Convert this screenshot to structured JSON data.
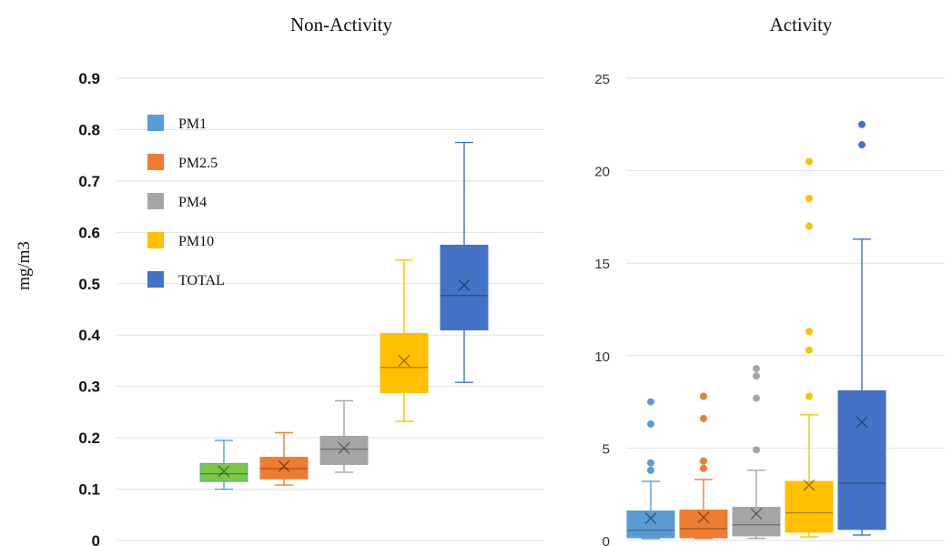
{
  "chart_data": [
    {
      "type": "boxplot",
      "title": "Non-Activity",
      "ylabel": "mg/m3",
      "ylim": [
        0,
        0.9
      ],
      "yticks": [
        "0",
        "0.1",
        "0.2",
        "0.3",
        "0.4",
        "0.5",
        "0.6",
        "0.7",
        "0.8",
        "0.9"
      ],
      "grid": true,
      "legend_position": "top-left",
      "series": [
        {
          "name": "PM1",
          "color": "#7CC744",
          "legend_color": "#5B9BD5",
          "edge": "#5B9BD5",
          "whisker_low": 0.1,
          "q1": 0.115,
          "median": 0.13,
          "mean": 0.135,
          "q3": 0.15,
          "whisker_high": 0.195,
          "outliers": []
        },
        {
          "name": "PM2.5",
          "color": "#ED7D31",
          "legend_color": "#ED7D31",
          "edge": "#ED7D31",
          "whisker_low": 0.108,
          "q1": 0.12,
          "median": 0.14,
          "mean": 0.145,
          "q3": 0.162,
          "whisker_high": 0.21,
          "outliers": []
        },
        {
          "name": "PM4",
          "color": "#A5A5A5",
          "legend_color": "#A5A5A5",
          "edge": "#A5A5A5",
          "whisker_low": 0.133,
          "q1": 0.148,
          "median": 0.178,
          "mean": 0.18,
          "q3": 0.203,
          "whisker_high": 0.272,
          "outliers": []
        },
        {
          "name": "PM10",
          "color": "#FFC000",
          "legend_color": "#FFC000",
          "edge": "#FFC000",
          "whisker_low": 0.232,
          "q1": 0.288,
          "median": 0.337,
          "mean": 0.35,
          "q3": 0.403,
          "whisker_high": 0.546,
          "outliers": []
        },
        {
          "name": "TOTAL",
          "color": "#4472C4",
          "legend_color": "#4472C4",
          "edge": "#4472C4",
          "whisker_low": 0.308,
          "q1": 0.41,
          "median": 0.477,
          "mean": 0.497,
          "q3": 0.575,
          "whisker_high": 0.775,
          "outliers": []
        }
      ]
    },
    {
      "type": "boxplot",
      "title": "Activity",
      "ylim": [
        0,
        25
      ],
      "yticks": [
        "0",
        "5",
        "10",
        "15",
        "20",
        "25"
      ],
      "grid": true,
      "series": [
        {
          "name": "PM1",
          "color": "#5B9BD5",
          "edge": "#5B9BD5",
          "whisker_low": 0.1,
          "q1": 0.15,
          "median": 0.55,
          "mean": 1.2,
          "q3": 1.6,
          "whisker_high": 3.2,
          "outliers": [
            3.8,
            4.2,
            6.3,
            7.5
          ]
        },
        {
          "name": "PM2.5",
          "color": "#ED7D31",
          "edge": "#ED7D31",
          "whisker_low": 0.1,
          "q1": 0.15,
          "median": 0.65,
          "mean": 1.25,
          "q3": 1.65,
          "whisker_high": 3.3,
          "outliers": [
            3.9,
            4.3,
            6.6,
            7.8
          ]
        },
        {
          "name": "PM4",
          "color": "#A5A5A5",
          "edge": "#A5A5A5",
          "whisker_low": 0.12,
          "q1": 0.25,
          "median": 0.85,
          "mean": 1.45,
          "q3": 1.8,
          "whisker_high": 3.8,
          "outliers": [
            4.9,
            7.7,
            8.9,
            9.3
          ]
        },
        {
          "name": "PM10",
          "color": "#FFC000",
          "edge": "#FFC000",
          "whisker_low": 0.2,
          "q1": 0.45,
          "median": 1.5,
          "mean": 3.0,
          "q3": 3.2,
          "whisker_high": 6.8,
          "outliers": [
            7.8,
            10.3,
            11.3,
            17.0,
            18.5,
            20.5
          ]
        },
        {
          "name": "TOTAL",
          "color": "#4472C4",
          "edge": "#4472C4",
          "whisker_low": 0.3,
          "q1": 0.6,
          "median": 3.1,
          "mean": 6.4,
          "q3": 8.1,
          "whisker_high": 16.3,
          "outliers": [
            21.4,
            22.5
          ]
        }
      ]
    }
  ]
}
